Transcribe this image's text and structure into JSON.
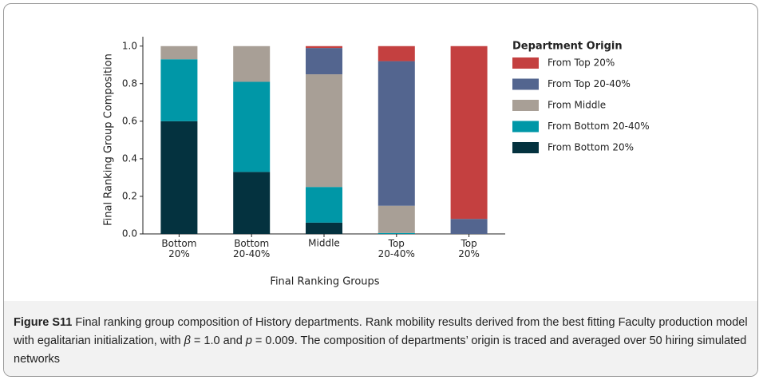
{
  "chart_data": {
    "type": "stacked_bar",
    "xlabel": "Final Ranking Groups",
    "ylabel": "Final Ranking Group Composition",
    "categories": [
      "Bottom 20%",
      "Bottom 20-40%",
      "Middle",
      "Top 20-40%",
      "Top 20%"
    ],
    "legend_title": "Department Origin",
    "legend": "right",
    "series": [
      {
        "name": "From Top 20%",
        "color": "#c44040",
        "values": [
          0,
          0,
          0.01,
          0.08,
          0.92
        ]
      },
      {
        "name": "From Top 20-40%",
        "color": "#53658f",
        "values": [
          0,
          0,
          0.14,
          0.77,
          0.08
        ]
      },
      {
        "name": "From Middle",
        "color": "#a89f96",
        "values": [
          0.07,
          0.19,
          0.6,
          0.145,
          0
        ]
      },
      {
        "name": "From Bottom 20-40%",
        "color": "#0097a7",
        "values": [
          0.33,
          0.48,
          0.19,
          0.005,
          0
        ]
      },
      {
        "name": "From Bottom 20%",
        "color": "#04323f",
        "values": [
          0.6,
          0.33,
          0.06,
          0,
          0
        ]
      }
    ],
    "ylim": [
      0,
      1.05
    ],
    "yticks": [
      {
        "value": 0,
        "label": "0.0"
      },
      0.2,
      0.4,
      0.6,
      0.8,
      {
        "value": 1,
        "label": "1.0"
      }
    ]
  },
  "caption": {
    "label": "Figure S11",
    "parts": [
      " Final ranking group composition of History departments. Rank mobility results derived from the best fitting Faculty production model with egalitarian initialization, with ",
      "β",
      " = 1.0 and ",
      "p",
      " = 0.009. The composition of departments’ origin is traced and averaged over 50 hiring simulated networks"
    ]
  }
}
